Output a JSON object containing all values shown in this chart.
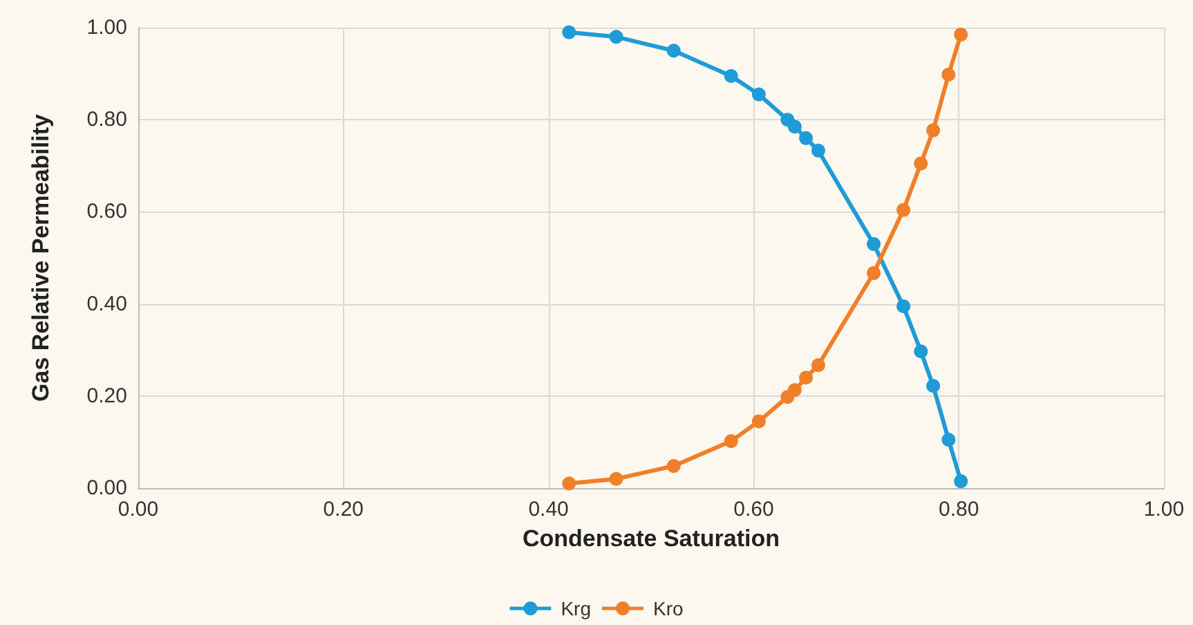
{
  "chart_data": {
    "type": "line",
    "xlabel": "Condensate Saturation",
    "ylabel": "Gas Relative Permeability",
    "xlim": [
      0,
      1
    ],
    "xticks": [
      {
        "value": 0,
        "label": "0.00"
      },
      {
        "value": 0.2,
        "label": "0.20"
      },
      {
        "value": 0.4,
        "label": "0.40"
      },
      {
        "value": 0.6,
        "label": "0.60"
      },
      {
        "value": 0.8,
        "label": "0.80"
      },
      {
        "value": 1,
        "label": "1.00"
      }
    ],
    "ylim": [
      0,
      1
    ],
    "yticks": [
      {
        "value": 0,
        "label": "0.00"
      },
      {
        "value": 0.2,
        "label": "0.20"
      },
      {
        "value": 0.4,
        "label": "0.40"
      },
      {
        "value": 0.6,
        "label": "0.60"
      },
      {
        "value": 0.8,
        "label": "0.80"
      },
      {
        "value": 1,
        "label": "1.00"
      }
    ],
    "x": [
      0.42,
      0.466,
      0.522,
      0.578,
      0.605,
      0.633,
      0.64,
      0.651,
      0.663,
      0.717,
      0.746,
      0.763,
      0.775,
      0.79,
      0.802
    ],
    "series": [
      {
        "name": "Krg",
        "color": "#1f9bd7",
        "values": [
          0.99,
          0.98,
          0.95,
          0.895,
          0.855,
          0.8,
          0.785,
          0.76,
          0.733,
          0.53,
          0.395,
          0.297,
          0.222,
          0.105,
          0.015
        ]
      },
      {
        "name": "Kro",
        "color": "#f07f2a",
        "values": [
          0.01,
          0.02,
          0.048,
          0.102,
          0.145,
          0.198,
          0.213,
          0.24,
          0.267,
          0.467,
          0.604,
          0.705,
          0.777,
          0.898,
          0.985
        ]
      }
    ],
    "grid": true,
    "legend": "bottom",
    "marker": "circle",
    "line_style": "solid"
  }
}
